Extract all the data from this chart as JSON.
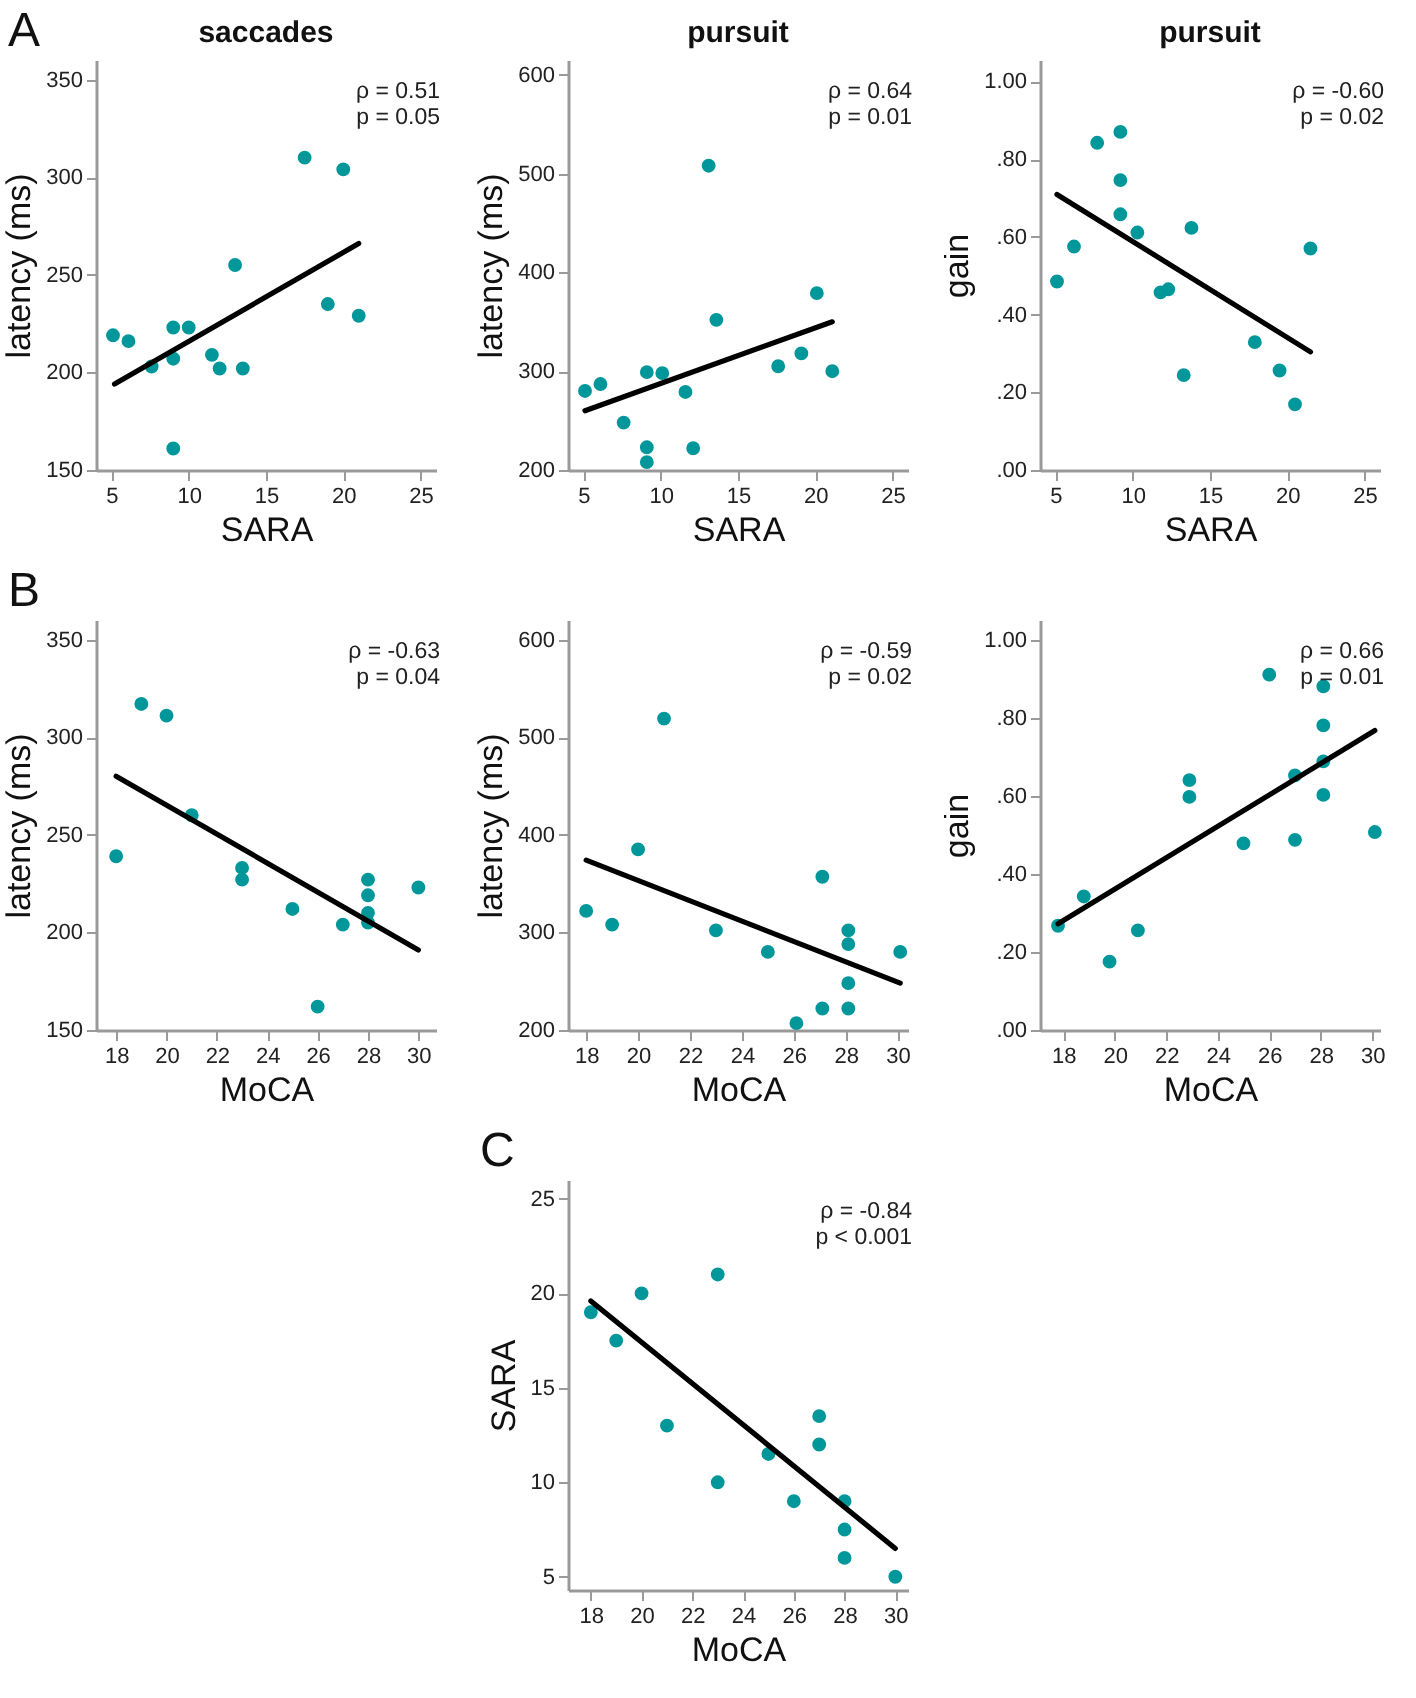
{
  "chart_data": [
    {
      "type": "scatter",
      "title": "saccades",
      "xlabel": "SARA",
      "ylabel": "latency (ms)",
      "annotations": [
        "A",
        "ρ = 0.51",
        "p = 0.05"
      ],
      "xlim": [
        4,
        26
      ],
      "ylim": [
        150,
        360
      ],
      "xticks": [
        5,
        10,
        15,
        20,
        25
      ],
      "yticks": [
        150,
        200,
        250,
        300,
        350
      ],
      "series": [
        {
          "type": "scatter",
          "marker": "circle",
          "color": "#00979b",
          "x": [
            5.1,
            6.1,
            7.6,
            9,
            9,
            9,
            10,
            11.5,
            12,
            13,
            13.5,
            17.5,
            19,
            20,
            21
          ],
          "values": [
            219,
            216,
            203,
            223,
            207,
            161,
            223,
            209,
            202,
            255,
            202,
            310,
            235,
            304,
            229
          ]
        },
        {
          "type": "line",
          "color": "#000000",
          "x": [
            5.2,
            21
          ],
          "values": [
            194,
            266
          ]
        }
      ]
    },
    {
      "type": "scatter",
      "title": "pursuit",
      "xlabel": "SARA",
      "ylabel": "latency (ms)",
      "annotations": [
        "ρ = 0.64",
        "p = 0.01"
      ],
      "xlim": [
        4,
        26
      ],
      "ylim": [
        200,
        615
      ],
      "xticks": [
        5,
        10,
        15,
        20,
        25
      ],
      "yticks": [
        200,
        300,
        400,
        500,
        600
      ],
      "series": [
        {
          "type": "scatter",
          "marker": "circle",
          "color": "#00979b",
          "x": [
            5.1,
            6.1,
            7.6,
            9.1,
            9.1,
            9.1,
            10.1,
            11.6,
            12.1,
            13.1,
            13.6,
            17.6,
            19.1,
            20.1,
            21.1
          ],
          "values": [
            280,
            287,
            248,
            299,
            223,
            208,
            298,
            279,
            222,
            508,
            352,
            305,
            318,
            379,
            300
          ]
        },
        {
          "type": "line",
          "color": "#000000",
          "x": [
            5.1,
            21.1
          ],
          "values": [
            260,
            350
          ]
        }
      ]
    },
    {
      "type": "scatter",
      "title": "pursuit",
      "xlabel": "SARA",
      "ylabel": "gain",
      "annotations": [
        "ρ = -0.60",
        "p = 0.02"
      ],
      "xlim": [
        4,
        26
      ],
      "ylim": [
        0,
        1.055
      ],
      "xticks": [
        5,
        10,
        15,
        20,
        25
      ],
      "yticks": [
        {
          "value": 0,
          "label": ".00"
        },
        {
          "value": 0.2,
          "label": ".20"
        },
        {
          "value": 0.4,
          "label": ".40"
        },
        {
          "value": 0.6,
          "label": ".60"
        },
        {
          "value": 0.8,
          "label": ".80"
        },
        {
          "value": 1,
          "label": "1.00"
        }
      ],
      "series": [
        {
          "type": "scatter",
          "marker": "circle",
          "color": "#00979b",
          "x": [
            5.1,
            6.2,
            7.7,
            9.2,
            9.2,
            9.2,
            10.3,
            11.8,
            12.3,
            13.8,
            13.3,
            17.9,
            19.5,
            20.5,
            21.5
          ],
          "values": [
            0.485,
            0.575,
            0.842,
            0.87,
            0.746,
            0.658,
            0.611,
            0.457,
            0.465,
            0.623,
            0.244,
            0.329,
            0.256,
            0.169,
            0.57
          ]
        },
        {
          "type": "line",
          "color": "#000000",
          "x": [
            5.1,
            21.5
          ],
          "values": [
            0.709,
            0.304
          ]
        }
      ]
    },
    {
      "type": "scatter",
      "xlabel": "MoCA",
      "ylabel": "latency (ms)",
      "annotations": [
        "B",
        "ρ = -0.63",
        "p = 0.04"
      ],
      "xlim": [
        17.2,
        30.7
      ],
      "ylim": [
        150,
        360
      ],
      "xticks": [
        18,
        20,
        22,
        24,
        26,
        28,
        30
      ],
      "yticks": [
        150,
        200,
        250,
        300,
        350
      ],
      "series": [
        {
          "type": "scatter",
          "marker": "circle",
          "color": "#00979b",
          "x": [
            18,
            19,
            20,
            21,
            23,
            23,
            25,
            26,
            27,
            28,
            28,
            28,
            28,
            30
          ],
          "values": [
            239,
            317,
            311,
            260,
            233,
            227,
            212,
            162,
            204,
            227,
            219,
            210,
            205,
            223
          ]
        },
        {
          "type": "line",
          "color": "#000000",
          "x": [
            18,
            30
          ],
          "values": [
            280,
            191
          ]
        }
      ]
    },
    {
      "type": "scatter",
      "xlabel": "MoCA",
      "ylabel": "latency (ms)",
      "annotations": [
        "ρ = -0.59",
        "p = 0.02"
      ],
      "xlim": [
        17.3,
        30.4
      ],
      "ylim": [
        200,
        620
      ],
      "xticks": [
        18,
        20,
        22,
        24,
        26,
        28,
        30
      ],
      "yticks": [
        200,
        300,
        400,
        500,
        600
      ],
      "series": [
        {
          "type": "scatter",
          "marker": "circle",
          "color": "#00979b",
          "x": [
            18,
            19,
            20,
            21,
            23,
            25,
            26.1,
            27.1,
            27.1,
            28.1,
            28.1,
            28.1,
            28.1,
            30.1
          ],
          "values": [
            322,
            308,
            385,
            519,
            302,
            280,
            207,
            222,
            357,
            302,
            288,
            248,
            222,
            280
          ]
        },
        {
          "type": "line",
          "color": "#000000",
          "x": [
            18,
            30.1
          ],
          "values": [
            374,
            248
          ]
        }
      ]
    },
    {
      "type": "scatter",
      "xlabel": "MoCA",
      "ylabel": "gain",
      "annotations": [
        "ρ = 0.66",
        "p = 0.01"
      ],
      "xlim": [
        17.1,
        30.3
      ],
      "ylim": [
        0,
        1.05
      ],
      "xticks": [
        18,
        20,
        22,
        24,
        26,
        28,
        30
      ],
      "yticks": [
        {
          "value": 0,
          "label": ".00"
        },
        {
          "value": 0.2,
          "label": ".20"
        },
        {
          "value": 0.4,
          "label": ".40"
        },
        {
          "value": 0.6,
          "label": ".60"
        },
        {
          "value": 0.8,
          "label": ".80"
        },
        {
          "value": 1,
          "label": "1.00"
        }
      ],
      "series": [
        {
          "type": "scatter",
          "marker": "circle",
          "color": "#00979b",
          "x": [
            17.8,
            18.8,
            19.8,
            20.9,
            22.9,
            22.9,
            25,
            26,
            27,
            27,
            28.1,
            28.1,
            28.1,
            28.1,
            30.1
          ],
          "values": [
            0.267,
            0.342,
            0.175,
            0.255,
            0.64,
            0.597,
            0.478,
            0.91,
            0.652,
            0.487,
            0.88,
            0.78,
            0.688,
            0.602,
            0.507
          ]
        },
        {
          "type": "line",
          "color": "#000000",
          "x": [
            17.8,
            30.1
          ],
          "values": [
            0.272,
            0.767
          ]
        }
      ]
    },
    {
      "type": "scatter",
      "xlabel": "MoCA",
      "ylabel": "SARA",
      "annotations": [
        "C",
        "ρ = -0.84",
        "p < 0.001"
      ],
      "xlim": [
        17.1,
        30.5
      ],
      "ylim": [
        4.3,
        26
      ],
      "xticks": [
        18,
        20,
        22,
        24,
        26,
        28,
        30
      ],
      "yticks": [
        5,
        10,
        15,
        20,
        25
      ],
      "series": [
        {
          "type": "scatter",
          "marker": "circle",
          "color": "#00979b",
          "x": [
            18,
            19,
            20,
            21,
            23,
            23,
            25,
            26,
            27,
            27,
            28,
            28,
            28,
            30
          ],
          "values": [
            19,
            17.5,
            20,
            13,
            21,
            10,
            11.5,
            9,
            13.5,
            12,
            9,
            7.5,
            6,
            5
          ]
        },
        {
          "type": "line",
          "color": "#000000",
          "x": [
            18,
            30
          ],
          "values": [
            19.6,
            6.5
          ]
        }
      ]
    }
  ]
}
